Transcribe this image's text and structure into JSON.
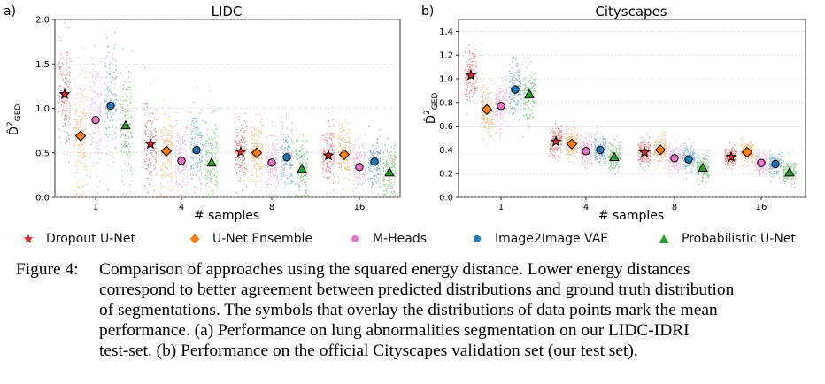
{
  "figure": {
    "legend": [
      {
        "label": "Dropout U-Net",
        "marker": "star",
        "color": "#d62728"
      },
      {
        "label": "U-Net Ensemble",
        "marker": "diamond",
        "color": "#ff7f0e"
      },
      {
        "label": "M-Heads",
        "marker": "circle",
        "color": "#e377c2"
      },
      {
        "label": "Image2Image VAE",
        "marker": "circle",
        "color": "#1f77b4"
      },
      {
        "label": "Probabilistic U-Net",
        "marker": "triangle",
        "color": "#2ca02c"
      }
    ]
  },
  "chart_data": [
    {
      "type": "scatter",
      "panel_label": "a)",
      "title": "LIDC",
      "xlabel": "# samples",
      "ylabel": "D̂²GED",
      "categories": [
        "1",
        "4",
        "8",
        "16"
      ],
      "ylim": [
        0.0,
        2.0
      ],
      "yticks": [
        "0.0",
        "0.5",
        "1.0",
        "1.5",
        "2.0"
      ],
      "grid": true,
      "series": [
        {
          "name": "Dropout U-Net",
          "values": [
            1.16,
            0.6,
            0.51,
            0.47
          ]
        },
        {
          "name": "U-Net Ensemble",
          "values": [
            0.69,
            0.52,
            0.5,
            0.48
          ]
        },
        {
          "name": "M-Heads",
          "values": [
            0.87,
            0.41,
            0.39,
            0.34
          ]
        },
        {
          "name": "Image2Image VAE",
          "values": [
            1.03,
            0.53,
            0.45,
            0.4
          ]
        },
        {
          "name": "Probabilistic U-Net",
          "values": [
            0.81,
            0.39,
            0.32,
            0.28
          ]
        }
      ]
    },
    {
      "type": "scatter",
      "panel_label": "b)",
      "title": "Cityscapes",
      "xlabel": "# samples",
      "ylabel": "D̂²GED",
      "categories": [
        "1",
        "4",
        "8",
        "16"
      ],
      "ylim": [
        0.0,
        1.5
      ],
      "yticks": [
        "0.0",
        "0.2",
        "0.4",
        "0.6",
        "0.8",
        "1.0",
        "1.2",
        "1.4"
      ],
      "grid": true,
      "series": [
        {
          "name": "Dropout U-Net",
          "values": [
            1.03,
            0.47,
            0.38,
            0.34
          ]
        },
        {
          "name": "U-Net Ensemble",
          "values": [
            0.74,
            0.45,
            0.4,
            0.38
          ]
        },
        {
          "name": "M-Heads",
          "values": [
            0.77,
            0.39,
            0.33,
            0.29
          ]
        },
        {
          "name": "Image2Image VAE",
          "values": [
            0.91,
            0.4,
            0.32,
            0.28
          ]
        },
        {
          "name": "Probabilistic U-Net",
          "values": [
            0.87,
            0.34,
            0.25,
            0.21
          ]
        }
      ]
    }
  ],
  "caption": {
    "label": "Figure 4:",
    "lines": [
      "Comparison of approaches using the squared energy distance.  Lower energy distances",
      "correspond to better agreement between predicted distributions and ground truth distribution",
      "of segmentations. The symbols that overlay the distributions of data points mark the mean",
      "performance.  (a) Performance on lung abnormalities segmentation on our LIDC-IDRI",
      "test-set. (b) Performance on the official Cityscapes validation set (our test set)."
    ]
  }
}
